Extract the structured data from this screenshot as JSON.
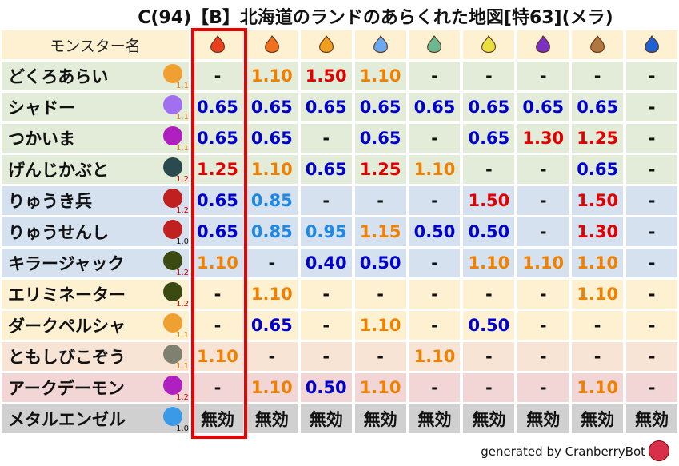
{
  "title": "C(94)【B】北海道のランドのあらくれた地図[特63](メラ)",
  "header": {
    "name_label": "モンスター名",
    "elements": [
      {
        "icon": "mera-fire-icon",
        "color": "#e8401c"
      },
      {
        "icon": "gira-flame-icon",
        "color": "#f07020"
      },
      {
        "icon": "io-explosion-icon",
        "color": "#f0a020"
      },
      {
        "icon": "hyado-ice-icon",
        "color": "#6aa8f0"
      },
      {
        "icon": "bagi-wind-icon",
        "color": "#6ab890"
      },
      {
        "icon": "dein-lightning-icon",
        "color": "#e8e040"
      },
      {
        "icon": "dorma-dark-icon",
        "color": "#7a30c0"
      },
      {
        "icon": "jibaria-earth-icon",
        "color": "#b07840"
      },
      {
        "icon": "water-icon",
        "color": "#2060d0"
      }
    ]
  },
  "value_colors": {
    "0.40": "#0000cc",
    "0.50": "#0000cc",
    "0.65": "#0000cc",
    "0.85": "#1e88e5",
    "0.95": "#1e88e5",
    "1.10": "#f08000",
    "1.15": "#f08000",
    "1.25": "#e00000",
    "1.30": "#e00000",
    "1.50": "#e00000",
    "-": "#111111",
    "無効": "#111111"
  },
  "mult_colors": {
    "1.0": "#111111",
    "1.1": "#f08000",
    "1.2": "#e00000"
  },
  "rows": [
    {
      "name": "どくろあらい",
      "mult": "1.1",
      "icon": "paw-icon",
      "icon_color": "#f0a030",
      "bg": "#e3ecd9",
      "values": [
        "-",
        "1.10",
        "1.50",
        "1.10",
        "-",
        "-",
        "-",
        "-",
        "-"
      ]
    },
    {
      "name": "シャドー",
      "mult": "1.1",
      "icon": "ghost-icon",
      "icon_color": "#a070f0",
      "bg": "#e3ecd9",
      "values": [
        "0.65",
        "0.65",
        "0.65",
        "0.65",
        "0.65",
        "0.65",
        "0.65",
        "0.65",
        "-"
      ]
    },
    {
      "name": "つかいま",
      "mult": "1.1",
      "icon": "trident-icon",
      "icon_color": "#b020c0",
      "bg": "#e3ecd9",
      "values": [
        "0.65",
        "0.65",
        "-",
        "0.65",
        "-",
        "0.65",
        "1.30",
        "1.25",
        "-"
      ]
    },
    {
      "name": "げんじかぶと",
      "mult": "1.2",
      "icon": "bug-icon",
      "icon_color": "#2a4a50",
      "bg": "#e3ecd9",
      "values": [
        "1.25",
        "1.10",
        "0.65",
        "1.25",
        "1.10",
        "-",
        "-",
        "0.65",
        "-"
      ]
    },
    {
      "name": "りゅうき兵",
      "mult": "1.2",
      "icon": "dragon-icon",
      "icon_color": "#c02020",
      "bg": "#d5e1ef",
      "values": [
        "0.65",
        "0.85",
        "-",
        "-",
        "-",
        "1.50",
        "-",
        "1.50",
        "-"
      ]
    },
    {
      "name": "りゅうせんし",
      "mult": "1.0",
      "icon": "dragon-icon",
      "icon_color": "#c02020",
      "bg": "#d5e1ef",
      "values": [
        "0.65",
        "0.85",
        "0.95",
        "1.15",
        "0.50",
        "0.50",
        "-",
        "1.30",
        "-"
      ]
    },
    {
      "name": "キラージャック",
      "mult": "1.2",
      "icon": "hooded-slime-icon",
      "icon_color": "#3a4a10",
      "bg": "#d5e1ef",
      "values": [
        "1.10",
        "-",
        "0.40",
        "0.50",
        "-",
        "1.10",
        "1.10",
        "1.10",
        "-"
      ]
    },
    {
      "name": "エリミネーター",
      "mult": "1.2",
      "icon": "hooded-slime-icon",
      "icon_color": "#3a4a10",
      "bg": "#fdf1d2",
      "values": [
        "-",
        "1.10",
        "-",
        "-",
        "-",
        "-",
        "-",
        "1.10",
        "-"
      ]
    },
    {
      "name": "ダークペルシャ",
      "mult": "1.1",
      "icon": "paw-icon",
      "icon_color": "#f0a030",
      "bg": "#fdf1d2",
      "values": [
        "-",
        "0.65",
        "-",
        "1.10",
        "-",
        "0.50",
        "-",
        "-",
        "-"
      ]
    },
    {
      "name": "ともしびこぞう",
      "mult": "1.1",
      "icon": "brick-icon",
      "icon_color": "#808070",
      "bg": "#f8e4d4",
      "values": [
        "1.10",
        "-",
        "-",
        "-",
        "1.10",
        "-",
        "-",
        "-",
        "-"
      ]
    },
    {
      "name": "アークデーモン",
      "mult": "1.2",
      "icon": "trident-icon",
      "icon_color": "#b020c0",
      "bg": "#f2d6d6",
      "values": [
        "-",
        "1.10",
        "0.50",
        "1.10",
        "-",
        "-",
        "-",
        "1.10",
        "-"
      ]
    },
    {
      "name": "メタルエンゼル",
      "mult": "1.0",
      "icon": "drop-icon",
      "icon_color": "#3a9ae8",
      "bg": "#d0d0d0",
      "values": [
        "無効",
        "無効",
        "無効",
        "無効",
        "無効",
        "無効",
        "無効",
        "無効",
        "無効"
      ]
    }
  ],
  "footer": {
    "text": "generated by CranberryBot",
    "icon": "cranberry-bot-icon"
  }
}
